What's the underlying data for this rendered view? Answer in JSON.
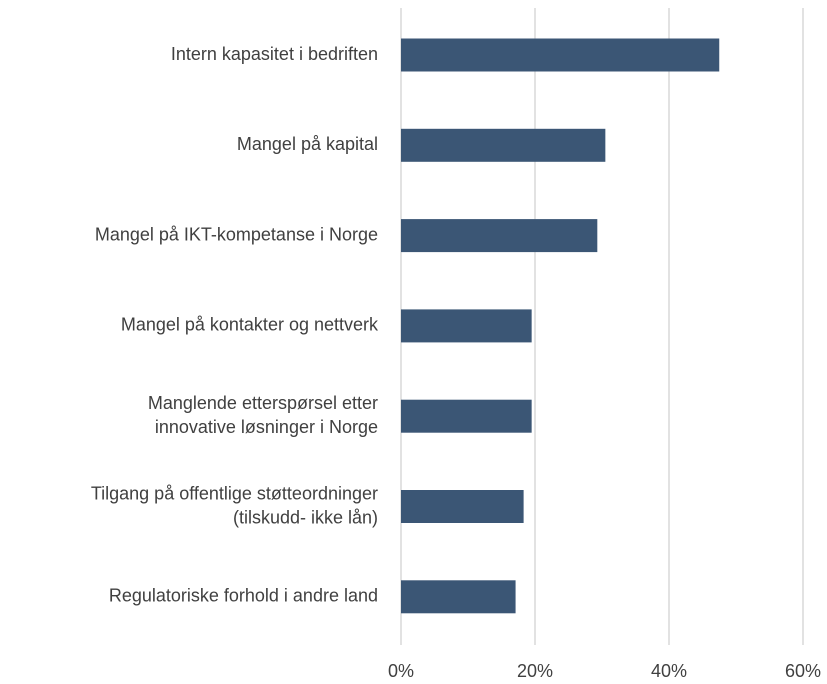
{
  "chart_data": {
    "type": "barh",
    "categories": [
      [
        "Intern kapasitet i bedriften"
      ],
      [
        "Mangel på kapital"
      ],
      [
        "Mangel på IKT-kompetanse i Norge"
      ],
      [
        "Mangel på kontakter og nettverk"
      ],
      [
        "Manglende etterspørsel etter",
        "innovative løsninger i Norge"
      ],
      [
        "Tilgang på offentlige støtteordninger",
        "(tilskudd-  ikke lån)"
      ],
      [
        "Regulatoriske forhold i andre land"
      ]
    ],
    "values": [
      47.5,
      30.5,
      29.3,
      19.5,
      19.5,
      18.3,
      17.1
    ],
    "color": "#3b5675",
    "xlim": [
      0,
      60
    ],
    "xticks": [
      {
        "value": 0,
        "label": "0%"
      },
      {
        "value": 20,
        "label": "20%"
      },
      {
        "value": 40,
        "label": "40%"
      },
      {
        "value": 60,
        "label": "60%"
      }
    ],
    "grid": true
  }
}
